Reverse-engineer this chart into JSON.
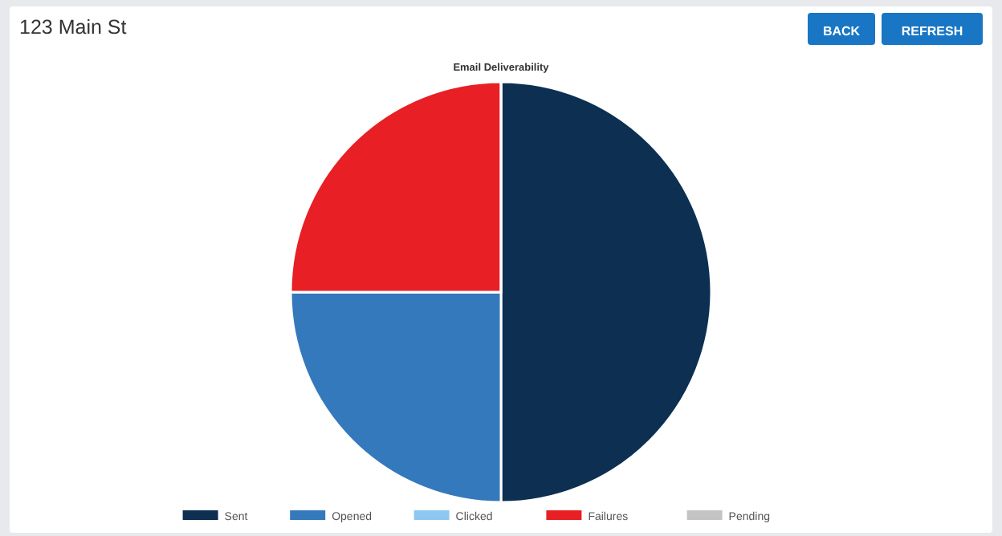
{
  "chart_data": {
    "type": "pie",
    "title": "Email Deliverability",
    "annotations": [
      "123 Main St",
      "BACK",
      "REFRESH"
    ],
    "categories": [
      "Sent",
      "Opened",
      "Clicked",
      "Failures",
      "Pending"
    ],
    "values": [
      50,
      25,
      0,
      25,
      0
    ],
    "colors": [
      "#0c2f52",
      "#3579bd",
      "#8ec8f0",
      "#e81f25",
      "#c4c4c4"
    ],
    "legend": "bottom"
  }
}
